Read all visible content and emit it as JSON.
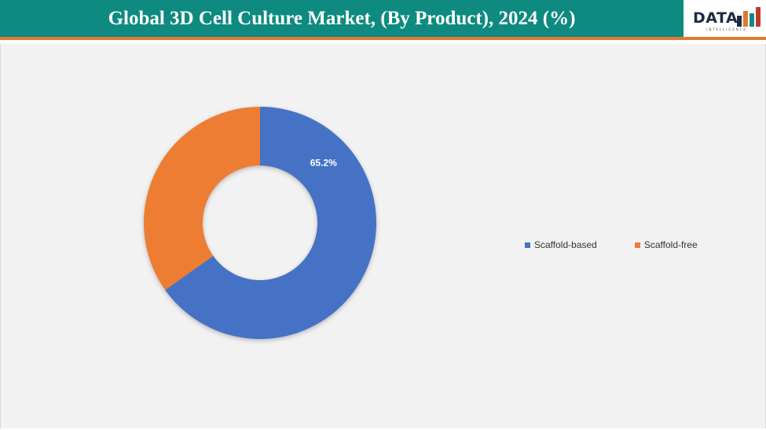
{
  "header": {
    "title": "Global 3D Cell Culture Market, (By Product), 2024 (%)"
  },
  "logo": {
    "word": "DATA",
    "subtitle": "INTELLIGENCE",
    "bar_colors": [
      "#1f2a44",
      "#e07a2e",
      "#0e8a80",
      "#c0392b"
    ]
  },
  "chart_data": {
    "type": "pie",
    "donut": true,
    "title": "Global 3D Cell Culture Market, (By Product), 2024 (%)",
    "categories": [
      "Scaffold-based",
      "Scaffold-free"
    ],
    "values": [
      65.2,
      34.8
    ],
    "colors": [
      "#4472c4",
      "#ed7d31"
    ],
    "data_labels": [
      "65.2%",
      ""
    ],
    "legend_position": "right"
  }
}
